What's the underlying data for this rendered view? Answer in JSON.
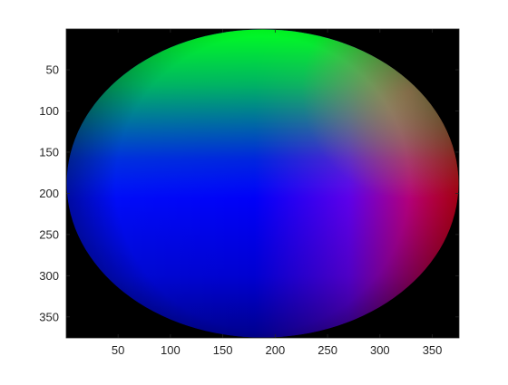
{
  "chart_data": {
    "type": "heatmap",
    "description_kind": "image-display",
    "title": "",
    "xlabel": "",
    "ylabel": "",
    "xlim": [
      0.5,
      375.5
    ],
    "ylim": [
      0.5,
      375.5
    ],
    "y_reversed": true,
    "grid": false,
    "x_ticks": [
      50,
      100,
      150,
      200,
      250,
      300,
      350
    ],
    "x_tick_labels": [
      "50",
      "100",
      "150",
      "200",
      "250",
      "300",
      "350"
    ],
    "y_ticks": [
      50,
      100,
      150,
      200,
      250,
      300,
      350
    ],
    "y_tick_labels": [
      "50",
      "100",
      "150",
      "200",
      "250",
      "300",
      "350"
    ],
    "image": {
      "shape": "ellipse",
      "center": [
        188,
        188
      ],
      "radius_x": 187,
      "radius_y": 187,
      "background_color": "#000000",
      "colors": {
        "top": "#00ff20",
        "right": "#ff0020",
        "center": "#0000ff",
        "left": "#0010ff",
        "bottom": "#0000a0",
        "upper_right": "#c07860"
      }
    }
  }
}
